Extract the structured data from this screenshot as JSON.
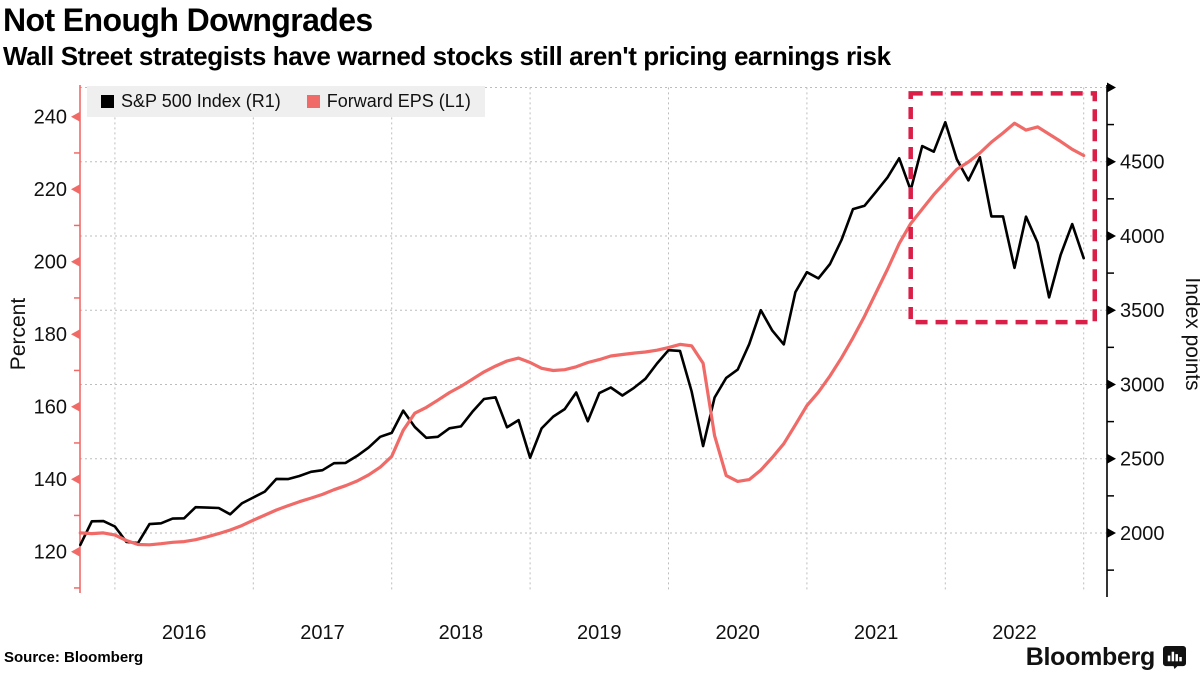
{
  "title": "Not Enough Downgrades",
  "subtitle": "Wall Street strategists have warned stocks still aren't pricing earnings risk",
  "source_note": "Source: Bloomberg",
  "brand": {
    "wordmark": "Bloomberg"
  },
  "colors": {
    "spx_line": "#000000",
    "eps_line": "#f06a67",
    "highlight_box": "#da1e48",
    "grid": "#bdbdbd",
    "legend_bg": "#efefef",
    "text": "#111111"
  },
  "chart_data": {
    "type": "line",
    "title": "Not Enough Downgrades",
    "subtitle": "Wall Street strategists have warned stocks still aren't pricing earnings risk",
    "legend_position": "top-left",
    "grid": "dotted",
    "x": {
      "start_month": "2015-09",
      "end_month": "2022-12",
      "frequency": "monthly",
      "tick_labels": [
        "2016",
        "2017",
        "2018",
        "2019",
        "2020",
        "2021",
        "2022"
      ],
      "grid_years": [
        2016,
        2017,
        2018,
        2019,
        2020,
        2021,
        2022,
        2023
      ]
    },
    "axes": {
      "left": {
        "title": "Percent",
        "ticks": [
          120,
          140,
          160,
          180,
          200,
          220,
          240
        ],
        "minor_ticks": [
          110,
          130,
          150,
          170,
          190,
          210,
          230
        ],
        "range": [
          110,
          243
        ]
      },
      "right": {
        "title": "Index points",
        "ticks": [
          2000,
          2500,
          3000,
          3500,
          4000,
          4500
        ],
        "minor_ticks": [
          1750,
          2250,
          2750,
          3250,
          3750,
          4250,
          4750
        ],
        "unlabeled_ticks": [
          5000
        ],
        "range": [
          1600,
          5000
        ]
      }
    },
    "series": [
      {
        "name": "S&P 500 Index (R1)",
        "axis": "right",
        "color": "#000000",
        "values": [
          1920,
          2079,
          2080,
          2044,
          1940,
          1932,
          2060,
          2065,
          2097,
          2099,
          2174,
          2171,
          2168,
          2126,
          2199,
          2239,
          2279,
          2364,
          2363,
          2384,
          2412,
          2423,
          2470,
          2472,
          2519,
          2575,
          2648,
          2674,
          2824,
          2714,
          2641,
          2648,
          2705,
          2718,
          2816,
          2902,
          2914,
          2712,
          2760,
          2507,
          2704,
          2784,
          2834,
          2946,
          2752,
          2942,
          2980,
          2926,
          2977,
          3038,
          3141,
          3231,
          3226,
          2954,
          2585,
          2912,
          3044,
          3100,
          3271,
          3500,
          3363,
          3270,
          3622,
          3756,
          3714,
          3811,
          3973,
          4181,
          4204,
          4298,
          4395,
          4523,
          4308,
          4605,
          4567,
          4766,
          4516,
          4374,
          4530,
          4132,
          4132,
          3785,
          4130,
          3955,
          3586,
          3872,
          4080,
          3850
        ]
      },
      {
        "name": "Forward EPS (L1)",
        "axis": "left",
        "color": "#f06a67",
        "values": [
          125.2,
          125.0,
          125.2,
          124.6,
          123.1,
          122.0,
          121.9,
          122.2,
          122.6,
          122.8,
          123.3,
          124.1,
          125.0,
          126.0,
          127.2,
          128.7,
          130.1,
          131.5,
          132.7,
          133.8,
          134.8,
          135.8,
          137.1,
          138.2,
          139.5,
          141.2,
          143.3,
          146.3,
          153.5,
          158.2,
          159.8,
          161.8,
          163.9,
          165.6,
          167.6,
          169.6,
          171.2,
          172.6,
          173.4,
          172.2,
          170.6,
          170.0,
          170.2,
          171.0,
          172.2,
          173.0,
          174.0,
          174.4,
          174.8,
          175.1,
          175.6,
          176.3,
          177.2,
          176.8,
          172.0,
          152.0,
          141.0,
          139.4,
          139.9,
          142.5,
          146.0,
          149.8,
          155.0,
          160.3,
          164.0,
          168.5,
          173.5,
          179.0,
          185.0,
          191.5,
          198.0,
          205.0,
          210.5,
          214.5,
          218.5,
          222.0,
          225.5,
          227.5,
          230.0,
          233.0,
          235.5,
          238.2,
          236.3,
          237.2,
          235.2,
          233.2,
          231.0,
          229.3
        ]
      }
    ],
    "annotation_box": {
      "style": "dashed",
      "color": "#da1e48",
      "x_from_year": 2021.75,
      "x_to_year": 2023.08,
      "right_axis_value_from": 3420,
      "right_axis_value_to": 4960
    }
  }
}
